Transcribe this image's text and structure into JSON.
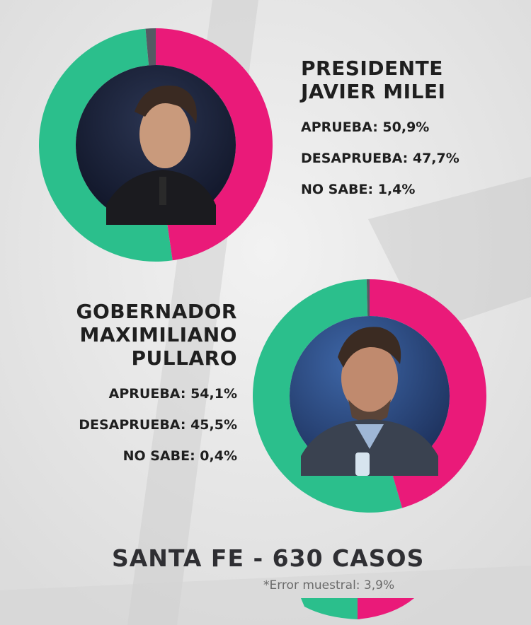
{
  "colors": {
    "aprueba": "#2bbf8c",
    "desaprueba": "#ea1a79",
    "no_sabe": "#555a63",
    "text": "#1f1f1f"
  },
  "milei": {
    "title_line1": "PRESIDENTE",
    "title_line2": "JAVIER MILEI",
    "aprueba": "APRUEBA: 50,9%",
    "desaprueba": "DESAPRUEBA: 47,7%",
    "no_sabe": "NO SABE: 1,4%"
  },
  "pullaro": {
    "title_line1": "GOBERNADOR",
    "title_line2": "MAXIMILIANO",
    "title_line3": "PULLARO",
    "aprueba": "APRUEBA: 54,1%",
    "desaprueba": "DESAPRUEBA: 45,5%",
    "no_sabe": "NO SABE: 0,4%"
  },
  "footer": {
    "title": "SANTA FE - 630 CASOS",
    "note": "*Error muestral: 3,9%"
  },
  "chart_data": [
    {
      "type": "pie",
      "categories": [
        "APRUEBA",
        "DESAPRUEBA",
        "NO SABE"
      ],
      "values": [
        50.9,
        47.7,
        1.4
      ],
      "title": "PRESIDENTE JAVIER MILEI"
    },
    {
      "type": "pie",
      "categories": [
        "APRUEBA",
        "DESAPRUEBA",
        "NO SABE"
      ],
      "values": [
        54.1,
        45.5,
        0.4
      ],
      "title": "GOBERNADOR MAXIMILIANO PULLARO"
    }
  ]
}
